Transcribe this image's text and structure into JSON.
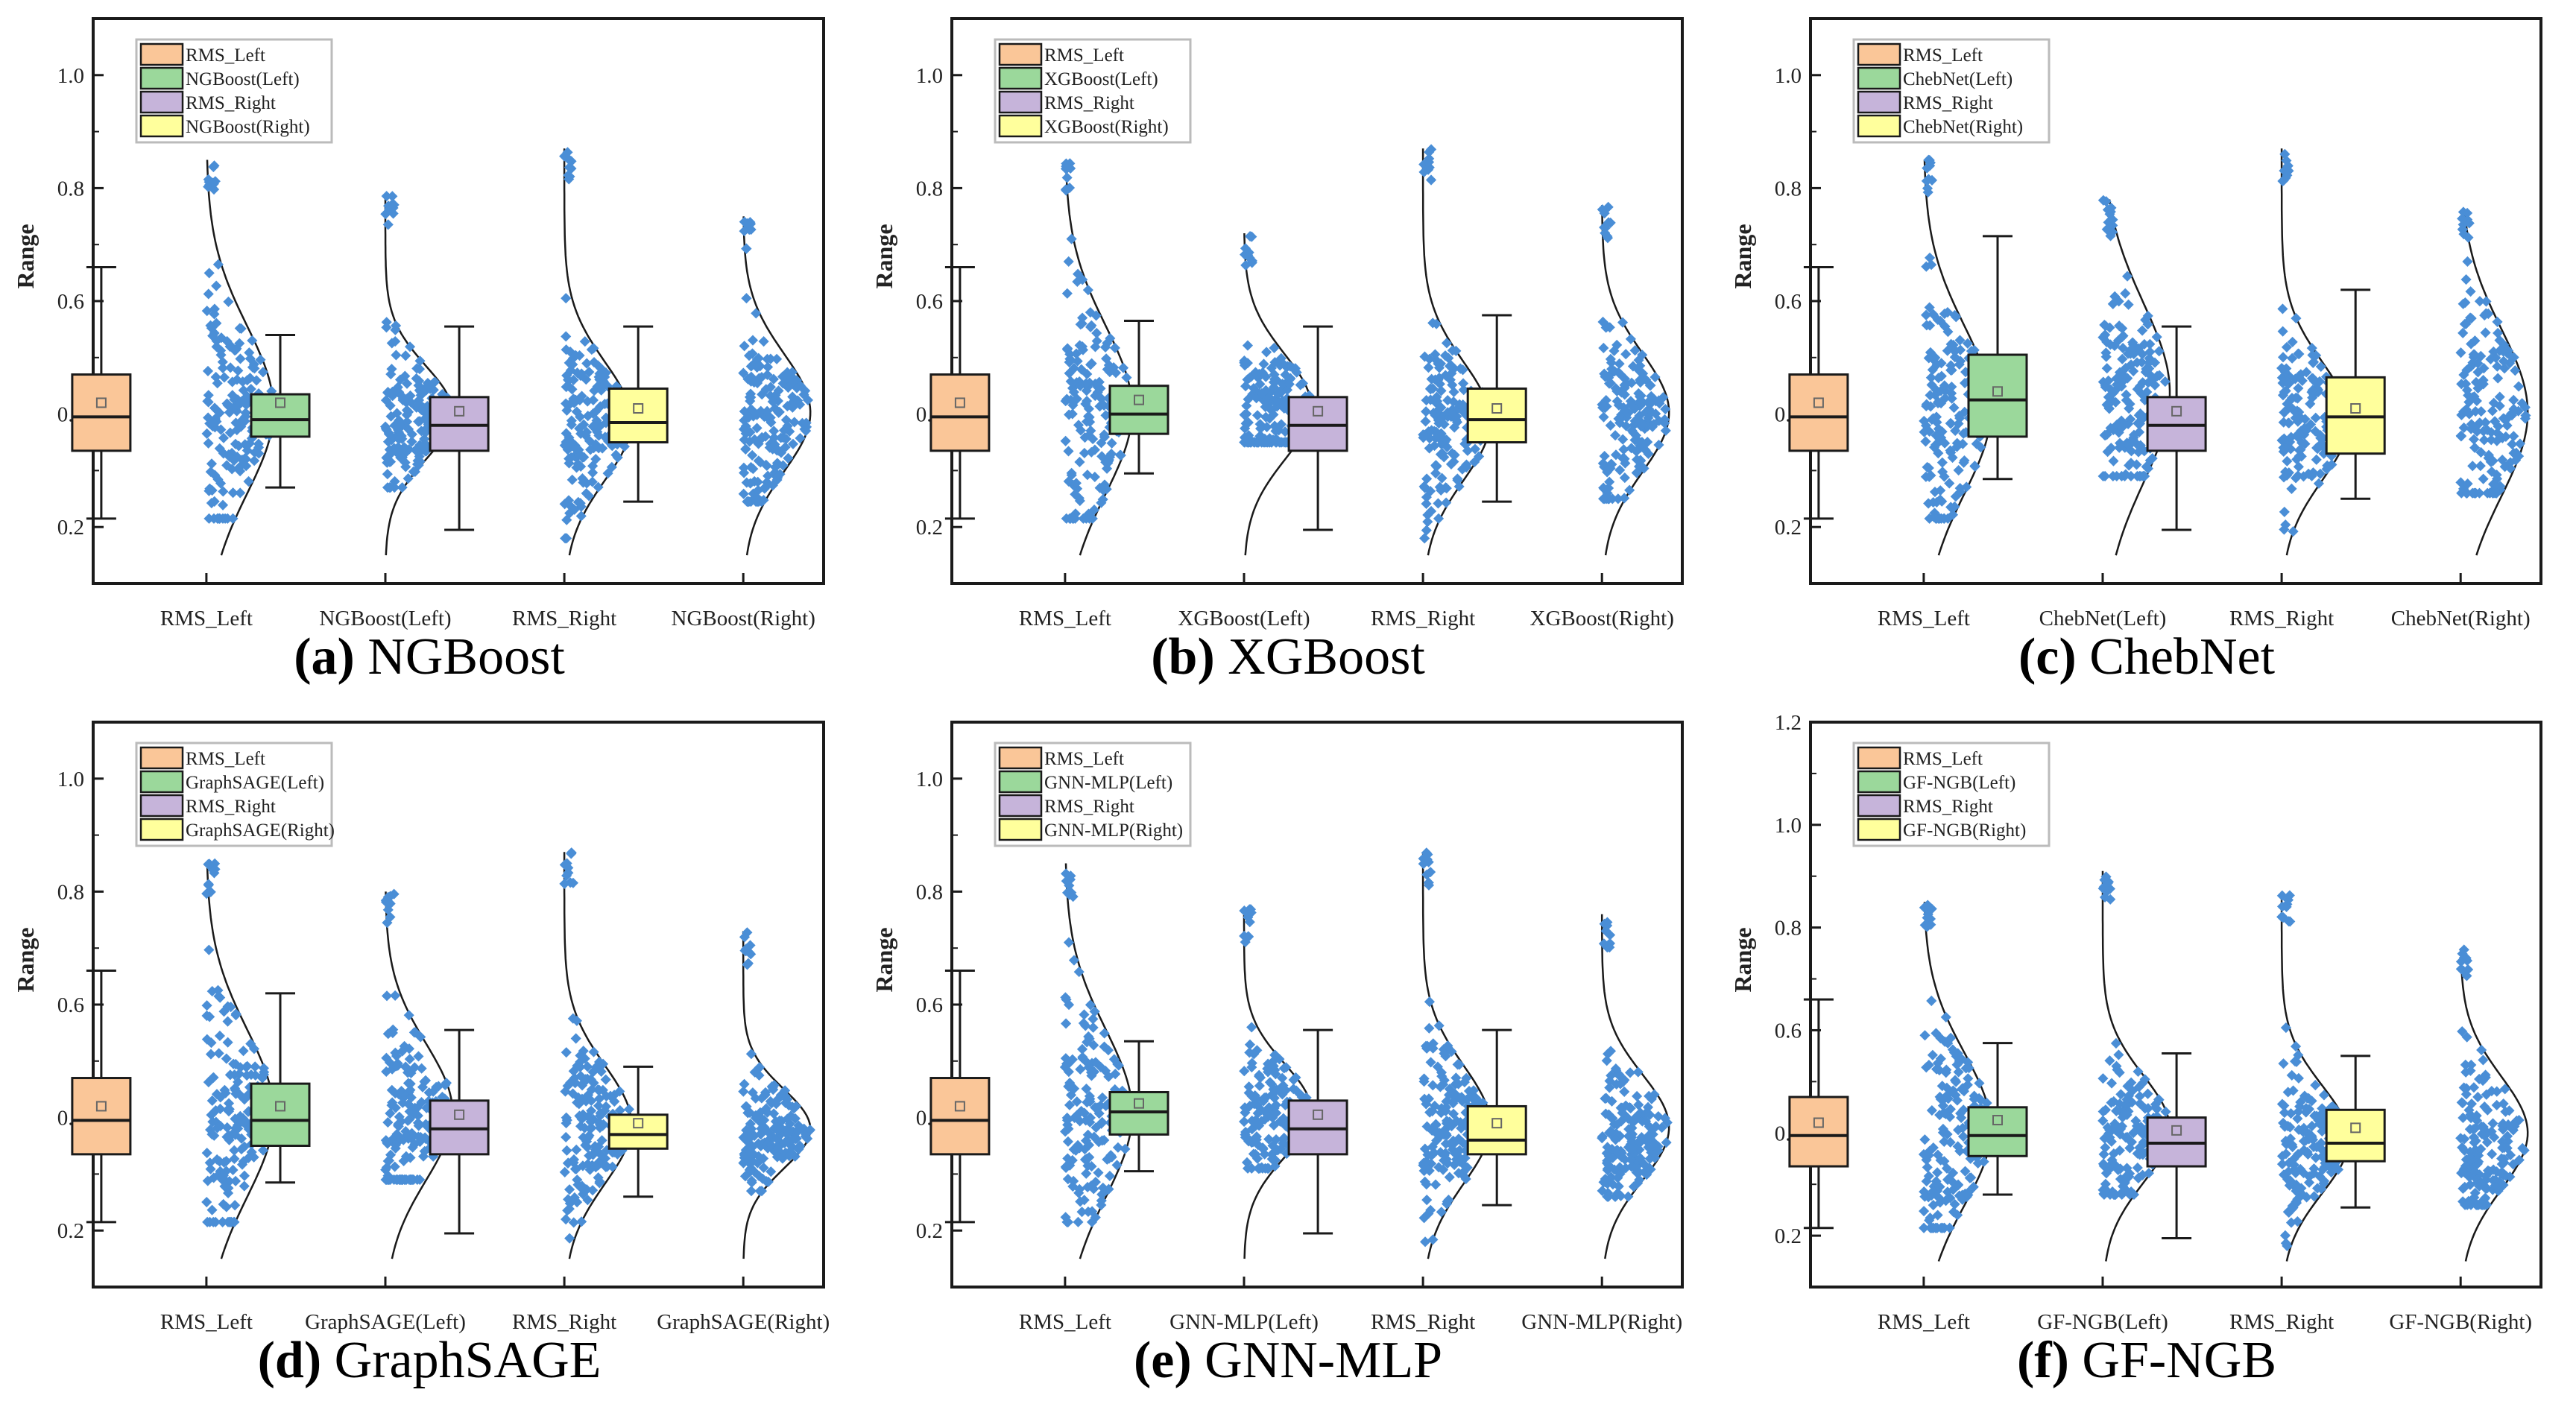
{
  "colors": {
    "box": [
      "#FAC698",
      "#9BD89B",
      "#C6B4DA",
      "#FFFF9C"
    ],
    "points": "#4A8ED6",
    "line": "#1a1a1a"
  },
  "chart_data": [
    {
      "type": "box",
      "letter": "(a)",
      "title": "NGBoost",
      "ylabel": "Range",
      "ylim": [
        0.1,
        1.1
      ],
      "yticks": [
        "0.2",
        "0.4",
        "0.6",
        "0.8",
        "1.0"
      ],
      "categories": [
        "RMS_Left",
        "NGBoost(Left)",
        "RMS_Right",
        "NGBoost(Right)"
      ],
      "series": [
        {
          "name": "RMS_Left",
          "whisker_low": 0.215,
          "q1": 0.335,
          "median": 0.395,
          "q3": 0.47,
          "whisker_high": 0.66,
          "mean": 0.42,
          "min": 0.215,
          "max": 0.85
        },
        {
          "name": "NGBoost(Left)",
          "whisker_low": 0.27,
          "q1": 0.36,
          "median": 0.39,
          "q3": 0.435,
          "whisker_high": 0.54,
          "mean": 0.42,
          "min": 0.27,
          "max": 0.79
        },
        {
          "name": "RMS_Right",
          "whisker_low": 0.195,
          "q1": 0.335,
          "median": 0.38,
          "q3": 0.43,
          "whisker_high": 0.555,
          "mean": 0.405,
          "min": 0.18,
          "max": 0.87
        },
        {
          "name": "NGBoost(Right)",
          "whisker_low": 0.245,
          "q1": 0.35,
          "median": 0.385,
          "q3": 0.445,
          "whisker_high": 0.555,
          "mean": 0.41,
          "min": 0.245,
          "max": 0.75
        }
      ]
    },
    {
      "type": "box",
      "letter": "(b)",
      "title": "XGBoost",
      "ylabel": "Range",
      "ylim": [
        0.1,
        1.1
      ],
      "yticks": [
        "0.2",
        "0.4",
        "0.6",
        "0.8",
        "1.0"
      ],
      "categories": [
        "RMS_Left",
        "XGBoost(Left)",
        "RMS_Right",
        "XGBoost(Right)"
      ],
      "series": [
        {
          "name": "RMS_Left",
          "whisker_low": 0.215,
          "q1": 0.335,
          "median": 0.395,
          "q3": 0.47,
          "whisker_high": 0.66,
          "mean": 0.42,
          "min": 0.215,
          "max": 0.85
        },
        {
          "name": "XGBoost(Left)",
          "whisker_low": 0.295,
          "q1": 0.365,
          "median": 0.4,
          "q3": 0.45,
          "whisker_high": 0.565,
          "mean": 0.425,
          "min": 0.35,
          "max": 0.72
        },
        {
          "name": "RMS_Right",
          "whisker_low": 0.195,
          "q1": 0.335,
          "median": 0.38,
          "q3": 0.43,
          "whisker_high": 0.555,
          "mean": 0.405,
          "min": 0.18,
          "max": 0.87
        },
        {
          "name": "XGBoost(Right)",
          "whisker_low": 0.245,
          "q1": 0.35,
          "median": 0.39,
          "q3": 0.445,
          "whisker_high": 0.575,
          "mean": 0.41,
          "min": 0.25,
          "max": 0.77
        }
      ]
    },
    {
      "type": "box",
      "letter": "(c)",
      "title": "ChebNet",
      "ylabel": "Range",
      "ylim": [
        0.1,
        1.1
      ],
      "yticks": [
        "0.2",
        "0.4",
        "0.6",
        "0.8",
        "1.0"
      ],
      "categories": [
        "RMS_Left",
        "ChebNet(Left)",
        "RMS_Right",
        "ChebNet(Right)"
      ],
      "series": [
        {
          "name": "RMS_Left",
          "whisker_low": 0.215,
          "q1": 0.335,
          "median": 0.395,
          "q3": 0.47,
          "whisker_high": 0.66,
          "mean": 0.42,
          "min": 0.215,
          "max": 0.85
        },
        {
          "name": "ChebNet(Left)",
          "whisker_low": 0.285,
          "q1": 0.36,
          "median": 0.425,
          "q3": 0.505,
          "whisker_high": 0.715,
          "mean": 0.44,
          "min": 0.29,
          "max": 0.78
        },
        {
          "name": "RMS_Right",
          "whisker_low": 0.195,
          "q1": 0.335,
          "median": 0.38,
          "q3": 0.43,
          "whisker_high": 0.555,
          "mean": 0.405,
          "min": 0.18,
          "max": 0.87
        },
        {
          "name": "ChebNet(Right)",
          "whisker_low": 0.25,
          "q1": 0.33,
          "median": 0.395,
          "q3": 0.465,
          "whisker_high": 0.62,
          "mean": 0.41,
          "min": 0.26,
          "max": 0.76
        }
      ]
    },
    {
      "type": "box",
      "letter": "(d)",
      "title": "GraphSAGE",
      "ylabel": "Range",
      "ylim": [
        0.1,
        1.1
      ],
      "yticks": [
        "0.2",
        "0.4",
        "0.6",
        "0.8",
        "1.0"
      ],
      "categories": [
        "RMS_Left",
        "GraphSAGE(Left)",
        "RMS_Right",
        "GraphSAGE(Right)"
      ],
      "series": [
        {
          "name": "RMS_Left",
          "whisker_low": 0.215,
          "q1": 0.335,
          "median": 0.395,
          "q3": 0.47,
          "whisker_high": 0.66,
          "mean": 0.42,
          "min": 0.215,
          "max": 0.85
        },
        {
          "name": "GraphSAGE(Left)",
          "whisker_low": 0.285,
          "q1": 0.35,
          "median": 0.395,
          "q3": 0.46,
          "whisker_high": 0.62,
          "mean": 0.42,
          "min": 0.29,
          "max": 0.8
        },
        {
          "name": "RMS_Right",
          "whisker_low": 0.195,
          "q1": 0.335,
          "median": 0.38,
          "q3": 0.43,
          "whisker_high": 0.555,
          "mean": 0.405,
          "min": 0.18,
          "max": 0.87
        },
        {
          "name": "GraphSAGE(Right)",
          "whisker_low": 0.26,
          "q1": 0.345,
          "median": 0.37,
          "q3": 0.405,
          "whisker_high": 0.49,
          "mean": 0.39,
          "min": 0.27,
          "max": 0.73
        }
      ]
    },
    {
      "type": "box",
      "letter": "(e)",
      "title": "GNN-MLP",
      "ylabel": "Range",
      "ylim": [
        0.1,
        1.1
      ],
      "yticks": [
        "0.2",
        "0.4",
        "0.6",
        "0.8",
        "1.0"
      ],
      "categories": [
        "RMS_Left",
        "GNN-MLP(Left)",
        "RMS_Right",
        "GNN-MLP(Right)"
      ],
      "series": [
        {
          "name": "RMS_Left",
          "whisker_low": 0.215,
          "q1": 0.335,
          "median": 0.395,
          "q3": 0.47,
          "whisker_high": 0.66,
          "mean": 0.42,
          "min": 0.215,
          "max": 0.85
        },
        {
          "name": "GNN-MLP(Left)",
          "whisker_low": 0.305,
          "q1": 0.37,
          "median": 0.41,
          "q3": 0.445,
          "whisker_high": 0.535,
          "mean": 0.425,
          "min": 0.31,
          "max": 0.77
        },
        {
          "name": "RMS_Right",
          "whisker_low": 0.195,
          "q1": 0.335,
          "median": 0.38,
          "q3": 0.43,
          "whisker_high": 0.555,
          "mean": 0.405,
          "min": 0.18,
          "max": 0.87
        },
        {
          "name": "GNN-MLP(Right)",
          "whisker_low": 0.245,
          "q1": 0.335,
          "median": 0.36,
          "q3": 0.42,
          "whisker_high": 0.555,
          "mean": 0.39,
          "min": 0.26,
          "max": 0.76
        }
      ]
    },
    {
      "type": "box",
      "letter": "(f)",
      "title": "GF-NGB",
      "ylabel": "Range",
      "ylim": [
        0.1,
        1.2
      ],
      "yticks": [
        "0.2",
        "0.4",
        "0.6",
        "0.8",
        "1.0",
        "1.2"
      ],
      "categories": [
        "RMS_Left",
        "GF-NGB(Left)",
        "RMS_Right",
        "GF-NGB(Right)"
      ],
      "series": [
        {
          "name": "RMS_Left",
          "whisker_low": 0.215,
          "q1": 0.335,
          "median": 0.395,
          "q3": 0.47,
          "whisker_high": 0.66,
          "mean": 0.42,
          "min": 0.215,
          "max": 0.85
        },
        {
          "name": "GF-NGB(Left)",
          "whisker_low": 0.28,
          "q1": 0.355,
          "median": 0.395,
          "q3": 0.45,
          "whisker_high": 0.575,
          "mean": 0.425,
          "min": 0.28,
          "max": 0.91
        },
        {
          "name": "RMS_Right",
          "whisker_low": 0.195,
          "q1": 0.335,
          "median": 0.38,
          "q3": 0.43,
          "whisker_high": 0.555,
          "mean": 0.405,
          "min": 0.18,
          "max": 0.87
        },
        {
          "name": "GF-NGB(Right)",
          "whisker_low": 0.255,
          "q1": 0.345,
          "median": 0.38,
          "q3": 0.445,
          "whisker_high": 0.55,
          "mean": 0.41,
          "min": 0.26,
          "max": 0.76
        }
      ]
    }
  ]
}
